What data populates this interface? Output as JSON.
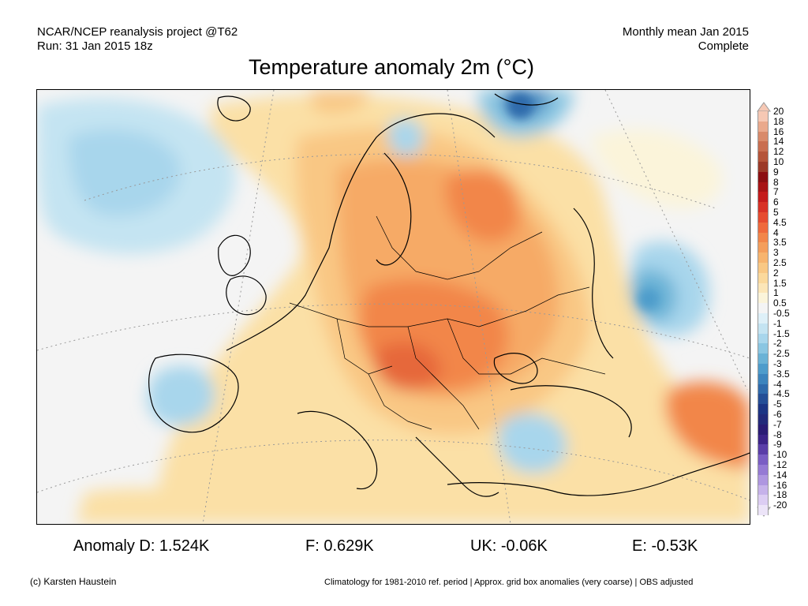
{
  "header": {
    "line1_left": "NCAR/NCEP reanalysis project @T62",
    "line2_left": "Run: 31 Jan 2015 18z",
    "line1_right": "Monthly mean Jan 2015",
    "line2_right": "Complete"
  },
  "title": "Temperature anomaly 2m (°C)",
  "legend": {
    "labels": [
      "20",
      "18",
      "16",
      "14",
      "12",
      "10",
      "9",
      "8",
      "7",
      "6",
      "5",
      "4.5",
      "4",
      "3.5",
      "3",
      "2.5",
      "2",
      "1.5",
      "1",
      "0.5",
      "-0.5",
      "-1",
      "-1.5",
      "-2",
      "-2.5",
      "-3",
      "-3.5",
      "-4",
      "-4.5",
      "-5",
      "-6",
      "-7",
      "-8",
      "-9",
      "-10",
      "-12",
      "-14",
      "-16",
      "-18",
      "-20"
    ],
    "colors": [
      "#f6c8b4",
      "#eaa98c",
      "#d98a6a",
      "#c96e50",
      "#b55439",
      "#9c3a28",
      "#8c0f12",
      "#a81416",
      "#c41c1c",
      "#d83226",
      "#e64c30",
      "#ef6a3c",
      "#f2864a",
      "#f49e5c",
      "#f7b46e",
      "#f9c884",
      "#fbd99c",
      "#fce6b8",
      "#fbf4da",
      "#f4f4f4",
      "#def0f8",
      "#c4e4f2",
      "#a8d6ec",
      "#8ac6e2",
      "#6ab2d6",
      "#4e9ccb",
      "#3c84bd",
      "#2f6aab",
      "#244e96",
      "#1c3584",
      "#222a7a",
      "#2a1c74",
      "#3c2488",
      "#5a3ea8",
      "#7a5ec4",
      "#957ad4",
      "#ae96e0",
      "#c6b2ea",
      "#dccdf3",
      "#ece4f8"
    ]
  },
  "stats": {
    "d": "Anomaly D: 1.524K",
    "f": "F: 0.629K",
    "uk": "UK: -0.06K",
    "e": "E: -0.53K"
  },
  "footer": {
    "left": "(c) Karsten Haustein",
    "right": "Climatology for 1981-2010 ref. period | Approx. grid box anomalies (very coarse) | OBS adjusted"
  }
}
